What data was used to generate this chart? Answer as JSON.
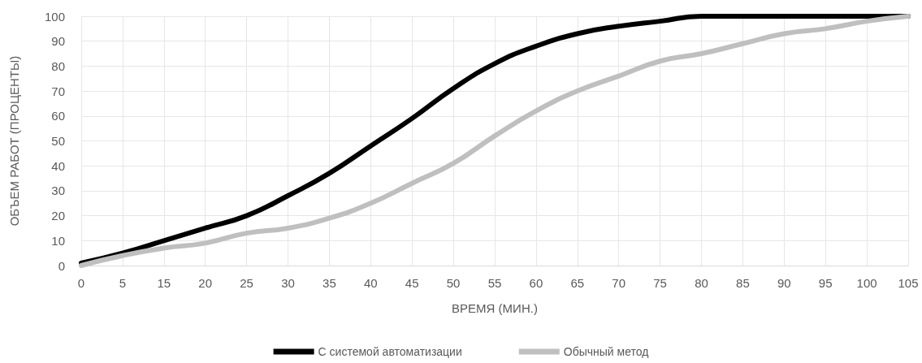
{
  "chart_data": {
    "type": "line",
    "xlabel": "ВРЕМЯ (МИН.)",
    "ylabel": "ОБЪЕМ РАБОТ (ПРОЦЕНТЫ)",
    "categories": [
      "0",
      "5",
      "15",
      "20",
      "25",
      "30",
      "35",
      "40",
      "45",
      "50",
      "55",
      "60",
      "65",
      "70",
      "75",
      "80",
      "85",
      "90",
      "95",
      "100",
      "105"
    ],
    "series": [
      {
        "name": "С системой автоматизации",
        "color": "#000000",
        "values": [
          1,
          5,
          10,
          15,
          20,
          28,
          37,
          48,
          59,
          71,
          81,
          88,
          93,
          96,
          98,
          100,
          100,
          100,
          100,
          100,
          100
        ]
      },
      {
        "name": "Обычный метод",
        "color": "#bfbfbf",
        "values": [
          0,
          4,
          7,
          9,
          13,
          15,
          19,
          25,
          33,
          41,
          52,
          62,
          70,
          76,
          82,
          85,
          89,
          93,
          95,
          98,
          100
        ]
      }
    ],
    "ylim": [
      0,
      100
    ],
    "yticks": [
      0,
      10,
      20,
      30,
      40,
      50,
      60,
      70,
      80,
      90,
      100
    ],
    "grid": true,
    "legend": "bottom",
    "marker": "none",
    "line_style": "solid"
  }
}
